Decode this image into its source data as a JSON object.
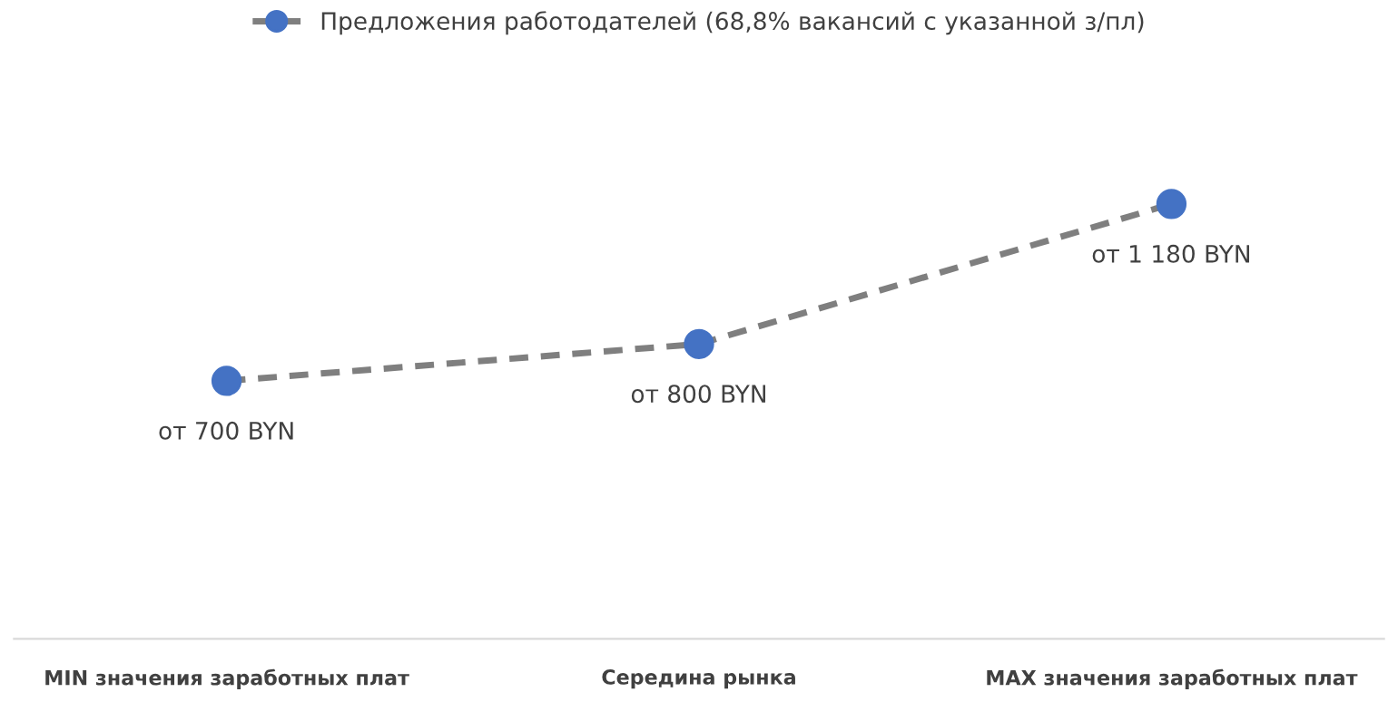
{
  "chart_data": {
    "type": "line",
    "categories": [
      "MIN значения заработных плат",
      "Середина рынка",
      "MAX значения заработных плат"
    ],
    "series": [
      {
        "name": "Предложения работодателей (68,8% вакансий с указанной з/пл)",
        "color": "#4472c4",
        "values": [
          700,
          800,
          1180
        ],
        "value_labels": [
          "от 700 BYN",
          "от 800 BYN",
          "от 1 180 BYN"
        ]
      }
    ],
    "tick_labels": "x",
    "grid": false,
    "legend": "top",
    "marker": "circle",
    "line_style": "dashed"
  }
}
